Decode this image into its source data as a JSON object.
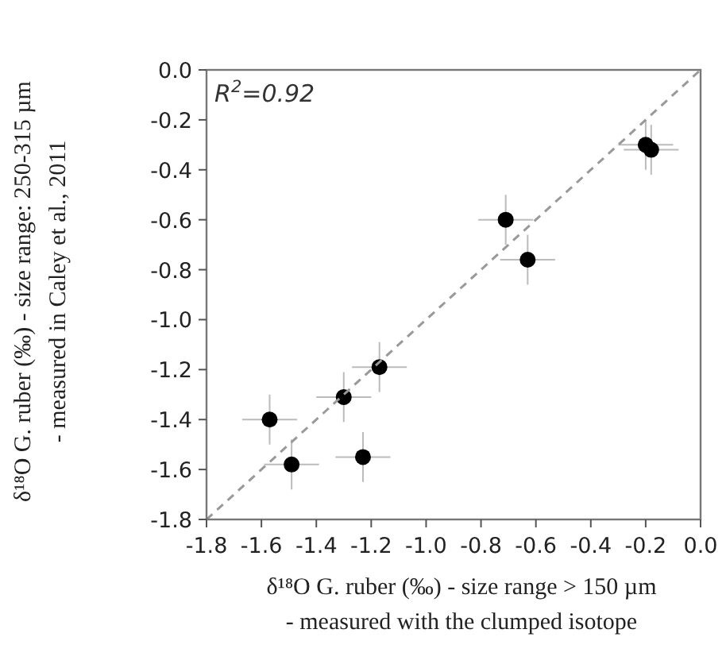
{
  "chart_data": {
    "type": "scatter",
    "xlabel": "δ¹⁸O G. ruber  (‰) - size range > 150 µm\n- measured with the clumped isotope",
    "ylabel": "δ¹⁸O G. ruber (‰) - size range: 250-315 µm\n- measured in Caley et al., 2011",
    "annotations": [
      "R$^{2}$=0.92"
    ],
    "xlim": [
      -1.8,
      0
    ],
    "ylim": [
      -1.8,
      0
    ],
    "xticks": [
      -1.8,
      -1.6,
      -1.4,
      -1.2,
      {
        "value": -1,
        "label": "-1.0"
      },
      -0.8,
      -0.6,
      -0.4,
      -0.2,
      {
        "value": 0,
        "label": "0.0"
      }
    ],
    "yticks": [
      -1.8,
      -1.6,
      -1.4,
      -1.2,
      {
        "value": -1,
        "label": "-1.0"
      },
      -0.8,
      -0.6,
      -0.4,
      -0.2,
      {
        "value": 0,
        "label": "0.0"
      }
    ],
    "grid": false,
    "series": [
      {
        "color": "#000000",
        "marker": "circle",
        "x": [
          -0.2,
          -0.18,
          -0.71,
          -0.63,
          -1.17,
          -1.3,
          -1.57,
          -1.49,
          -1.23
        ],
        "values": [
          -0.3,
          -0.32,
          -0.6,
          -0.76,
          -1.19,
          -1.31,
          -1.4,
          -1.58,
          -1.55
        ],
        "errors": [
          0.1,
          0.1,
          0.1,
          0.1,
          0.1,
          0.1,
          0.1,
          0.1,
          0.1
        ],
        "xerrors": [
          0.1,
          0.1,
          0.1,
          0.1,
          0.1,
          0.1,
          0.1,
          0.1,
          0.1
        ]
      },
      {
        "type": "line",
        "color": "#999999",
        "line_style": "dashed",
        "x": [
          -1.8,
          0
        ],
        "values": [
          -1.8,
          0
        ]
      }
    ]
  }
}
